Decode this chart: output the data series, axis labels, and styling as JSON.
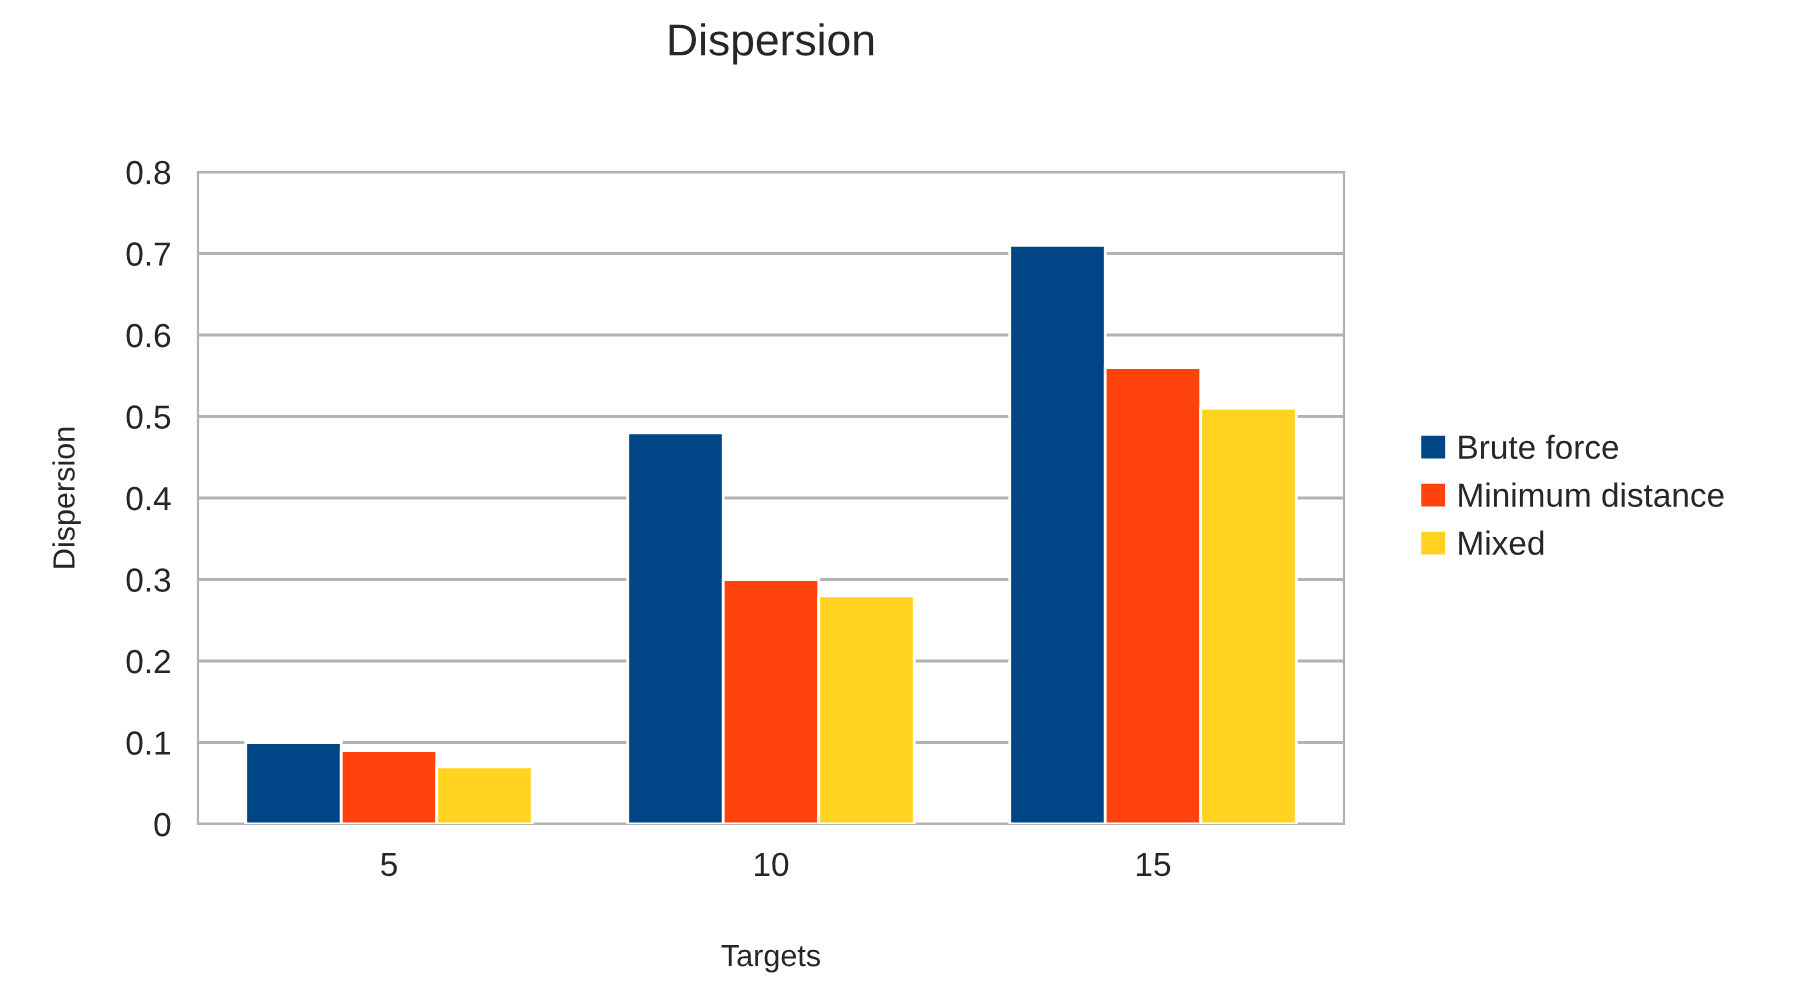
{
  "chart_data": {
    "type": "bar",
    "title": "Dispersion",
    "xlabel": "Targets",
    "ylabel": "Dispersion",
    "categories": [
      "5",
      "10",
      "15"
    ],
    "series": [
      {
        "name": "Brute force",
        "color": "#004586",
        "values": [
          0.1,
          0.48,
          0.71
        ]
      },
      {
        "name": "Minimum distance",
        "color": "#ff420e",
        "values": [
          0.09,
          0.3,
          0.56
        ]
      },
      {
        "name": "Mixed",
        "color": "#ffd320",
        "values": [
          0.07,
          0.28,
          0.51
        ]
      }
    ],
    "ylim": [
      0,
      0.8
    ],
    "yticks": [
      0,
      0.1,
      0.2,
      0.3,
      0.4,
      0.5,
      0.6,
      0.7,
      0.8
    ],
    "grid": "y",
    "legend": "right"
  }
}
